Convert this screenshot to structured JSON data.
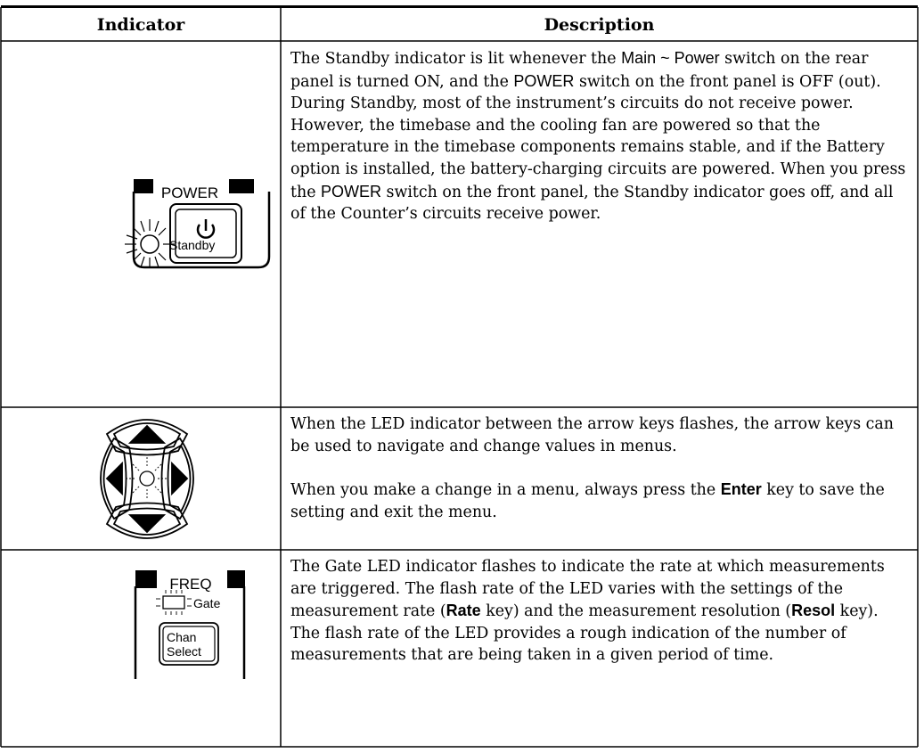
{
  "table": {
    "header": [
      "Indicator",
      "Description"
    ],
    "rows": [
      {
        "indicator_labels": {
          "panel": "POWER",
          "led": "Standby"
        },
        "description": [
          [
            "The Standby indicator is lit whenever the ",
            "Main ~ Power",
            " switch on the rear panel is turned ON, and the ",
            "POWER",
            " switch on the front panel is OFF (out). During Standby, most of the instrument’s circuits do not receive power. However, the timebase and the cooling fan are powered so that the temperature in the timebase components remains stable, and if the Battery option is installed, the battery-charging circuits are powered. When you press the ",
            "POWER",
            " switch on the front panel, the Standby indicator goes off, and all of the Counter’s circuits receive power."
          ]
        ]
      },
      {
        "description": [
          [
            "When the LED indicator between the arrow keys flashes, the arrow keys can be used to navigate and change values in menus."
          ],
          [
            "When you make a change in a menu, always press the ",
            "Enter",
            " key to save the setting and exit the menu."
          ]
        ]
      },
      {
        "indicator_labels": {
          "panel": "FREQ",
          "led": "Gate",
          "button": [
            "Chan",
            "Select"
          ]
        },
        "description": [
          [
            "The Gate LED indicator flashes to indicate the rate at which measurements are triggered. The flash rate of the LED varies with the settings of the measurement rate (",
            "Rate",
            " key) and the measurement resolution (",
            "Resol",
            " key). The flash rate of the LED provides a rough indication of the number of measurements that are being taken in a given period of time."
          ]
        ]
      }
    ]
  }
}
